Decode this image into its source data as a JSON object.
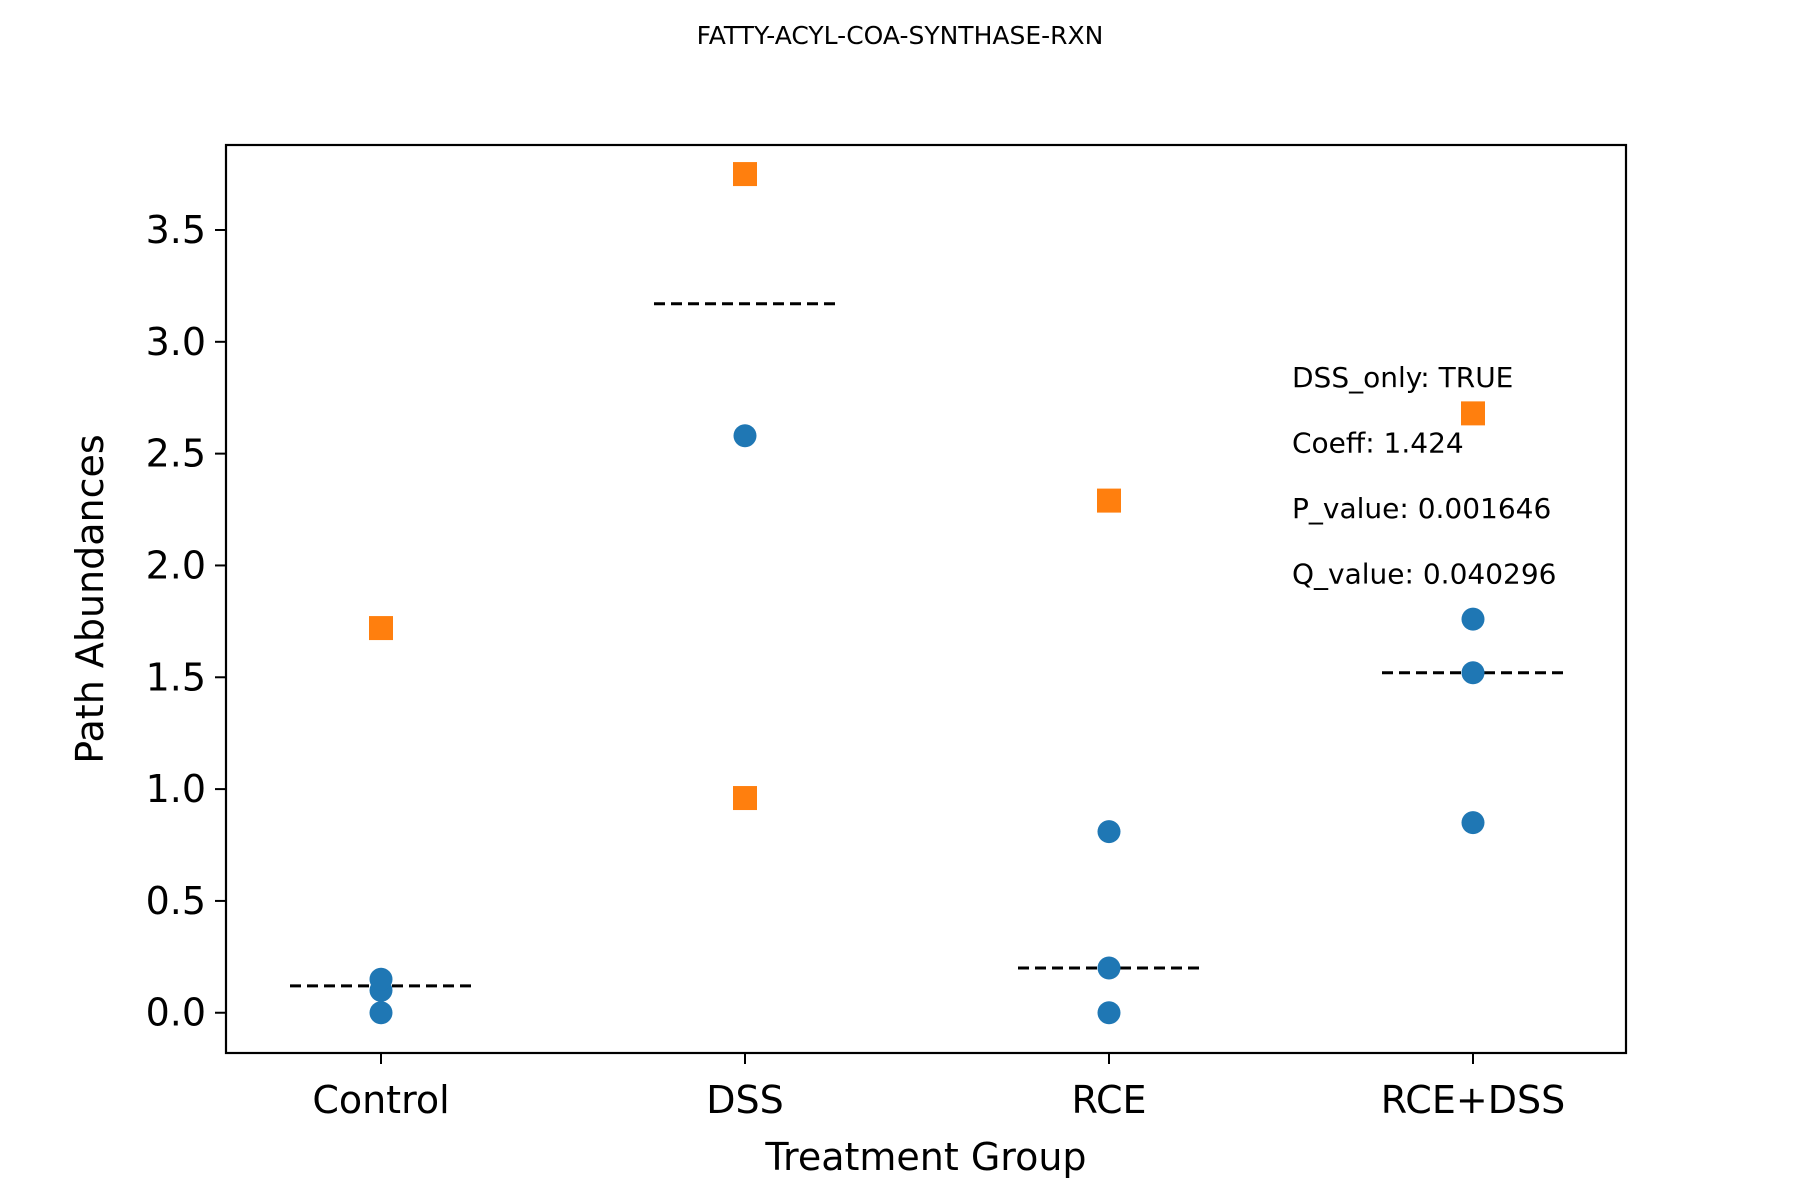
{
  "chart_data": {
    "type": "scatter",
    "title": "FATTY-ACYL-COA-SYNTHASE-RXN",
    "xlabel": "Treatment Group",
    "ylabel": "Path Abundances",
    "categories": [
      "Control",
      "DSS",
      "RCE",
      "RCE+DSS"
    ],
    "ylim": [
      -0.18,
      3.88
    ],
    "yticks": [
      0.0,
      0.5,
      1.0,
      1.5,
      2.0,
      2.5,
      3.0,
      3.5
    ],
    "ytick_labels": [
      "0.0",
      "0.5",
      "1.0",
      "1.5",
      "2.0",
      "2.5",
      "3.0",
      "3.5"
    ],
    "grid": false,
    "series": [
      {
        "marker": "circle",
        "color": "#1f77b4",
        "points": [
          {
            "category": "Control",
            "y": 0.0
          },
          {
            "category": "Control",
            "y": 0.1
          },
          {
            "category": "Control",
            "y": 0.15
          },
          {
            "category": "DSS",
            "y": 2.58
          },
          {
            "category": "DSS",
            "y": 3.75
          },
          {
            "category": "RCE",
            "y": 0.0
          },
          {
            "category": "RCE",
            "y": 0.2
          },
          {
            "category": "RCE",
            "y": 0.81
          },
          {
            "category": "RCE+DSS",
            "y": 0.85
          },
          {
            "category": "RCE+DSS",
            "y": 1.52
          },
          {
            "category": "RCE+DSS",
            "y": 1.76
          }
        ]
      },
      {
        "marker": "square",
        "color": "#ff7f0e",
        "points": [
          {
            "category": "Control",
            "y": 1.72
          },
          {
            "category": "DSS",
            "y": 0.96
          },
          {
            "category": "DSS",
            "y": 3.75
          },
          {
            "category": "RCE",
            "y": 2.29
          },
          {
            "category": "RCE+DSS",
            "y": 2.68
          }
        ]
      }
    ],
    "group_means": [
      {
        "category": "Control",
        "y": 0.12
      },
      {
        "category": "DSS",
        "y": 3.17
      },
      {
        "category": "RCE",
        "y": 0.2
      },
      {
        "category": "RCE+DSS",
        "y": 1.52
      }
    ],
    "annotations": [
      "DSS_only: TRUE",
      "Coeff: 1.424",
      "P_value: 0.001646",
      "Q_value: 0.040296"
    ]
  }
}
